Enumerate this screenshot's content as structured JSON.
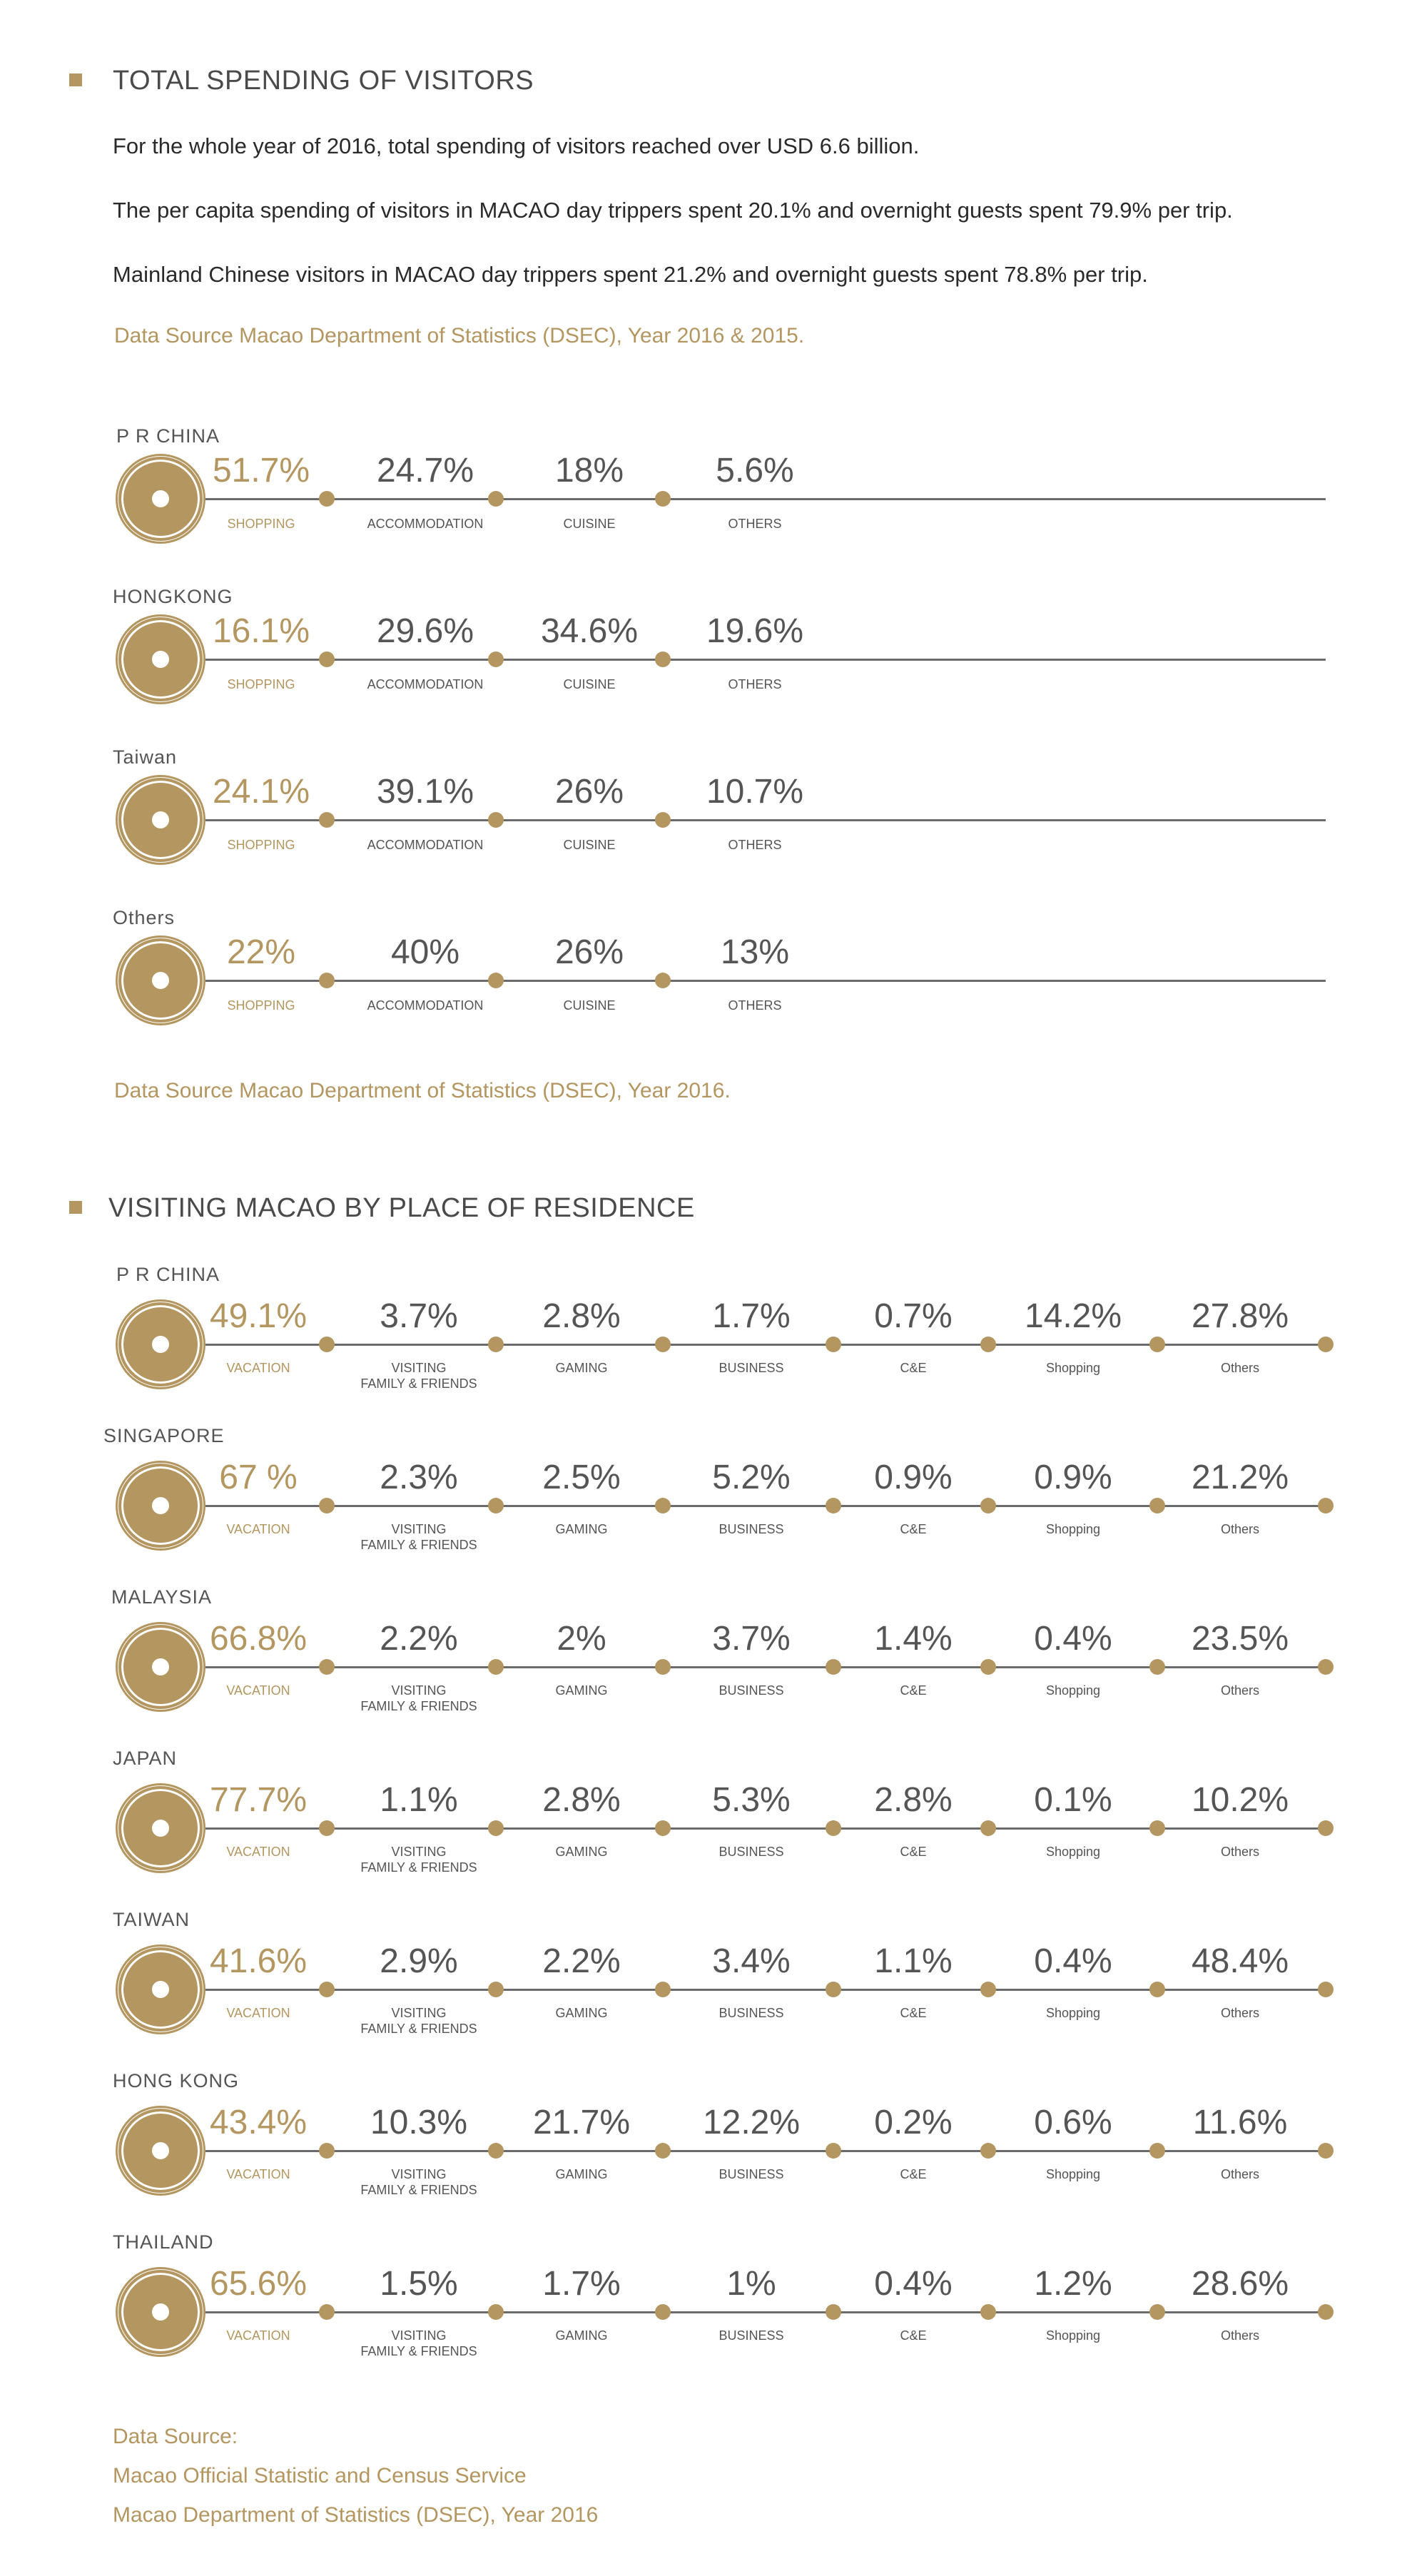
{
  "colors": {
    "accent": "#b39660",
    "text": "#3d3d3d",
    "line": "#6b6b6b"
  },
  "spending": {
    "heading": "TOTAL SPENDING OF VISITORS",
    "paragraphs": [
      "For the whole year of 2016, total spending of visitors reached over USD 6.6 billion.",
      "The per capita spending of visitors in MACAO day trippers spent 20.1% and overnight guests spent 79.9% per trip.",
      "Mainland Chinese visitors in MACAO day trippers spent 21.2% and overnight guests spent 78.8% per trip."
    ],
    "source_top": "Data Source Macao Department of Statistics (DSEC), Year 2016 & 2015.",
    "source_bottom": "Data Source Macao Department of Statistics (DSEC), Year 2016."
  },
  "residence": {
    "heading": "VISITING MACAO BY PLACE OF RESIDENCE",
    "source_lines": [
      "Data Source:",
      "Macao Official Statistic and Census Service",
      "Macao Department of Statistics (DSEC), Year 2016"
    ]
  },
  "chart_data": [
    {
      "type": "table",
      "title": "TOTAL SPENDING OF VISITORS",
      "categories": [
        "SHOPPING",
        "ACCOMMODATION",
        "CUISINE",
        "OTHERS"
      ],
      "rows": [
        {
          "name": "P R CHINA",
          "labels": [
            "51.7%",
            "24.7%",
            "18%",
            "5.6%"
          ],
          "values": [
            51.7,
            24.7,
            18,
            5.6
          ]
        },
        {
          "name": "HONGKONG",
          "labels": [
            "16.1%",
            "29.6%",
            "34.6%",
            "19.6%"
          ],
          "values": [
            16.1,
            29.6,
            34.6,
            19.6
          ]
        },
        {
          "name": "Taiwan",
          "labels": [
            "24.1%",
            "39.1%",
            "26%",
            "10.7%"
          ],
          "values": [
            24.1,
            39.1,
            26,
            10.7
          ]
        },
        {
          "name": "Others",
          "labels": [
            "22%",
            "40%",
            "26%",
            "13%"
          ],
          "values": [
            22,
            40,
            26,
            13
          ]
        }
      ]
    },
    {
      "type": "table",
      "title": "VISITING MACAO BY PLACE OF RESIDENCE",
      "categories": [
        "VACATION",
        "VISITING\nFAMILY & FRIENDS",
        "GAMING",
        "BUSINESS",
        "C&E",
        "Shopping",
        "Others"
      ],
      "rows": [
        {
          "name": "P R CHINA",
          "labels": [
            "49.1%",
            "3.7%",
            "2.8%",
            "1.7%",
            "0.7%",
            "14.2%",
            "27.8%"
          ],
          "values": [
            49.1,
            3.7,
            2.8,
            1.7,
            0.7,
            14.2,
            27.8
          ]
        },
        {
          "name": "SINGAPORE",
          "labels": [
            "67 %",
            "2.3%",
            "2.5%",
            "5.2%",
            "0.9%",
            "0.9%",
            "21.2%"
          ],
          "values": [
            67,
            2.3,
            2.5,
            5.2,
            0.9,
            0.9,
            21.2
          ]
        },
        {
          "name": "MALAYSIA",
          "labels": [
            "66.8%",
            "2.2%",
            "2%",
            "3.7%",
            "1.4%",
            "0.4%",
            "23.5%"
          ],
          "values": [
            66.8,
            2.2,
            2,
            3.7,
            1.4,
            0.4,
            23.5
          ]
        },
        {
          "name": "JAPAN",
          "labels": [
            "77.7%",
            "1.1%",
            "2.8%",
            "5.3%",
            "2.8%",
            "0.1%",
            "10.2%"
          ],
          "values": [
            77.7,
            1.1,
            2.8,
            5.3,
            2.8,
            0.1,
            10.2
          ]
        },
        {
          "name": "TAIWAN",
          "labels": [
            "41.6%",
            "2.9%",
            "2.2%",
            "3.4%",
            "1.1%",
            "0.4%",
            "48.4%"
          ],
          "values": [
            41.6,
            2.9,
            2.2,
            3.4,
            1.1,
            0.4,
            48.4
          ]
        },
        {
          "name": "HONG KONG",
          "labels": [
            "43.4%",
            "10.3%",
            "21.7%",
            "12.2%",
            "0.2%",
            "0.6%",
            "11.6%"
          ],
          "values": [
            43.4,
            10.3,
            21.7,
            12.2,
            0.2,
            0.6,
            11.6
          ]
        },
        {
          "name": "THAILAND",
          "labels": [
            "65.6%",
            "1.5%",
            "1.7%",
            "1%",
            "0.4%",
            "1.2%",
            "28.6%"
          ],
          "values": [
            65.6,
            1.5,
            1.7,
            1,
            0.4,
            1.2,
            28.6
          ]
        }
      ]
    }
  ]
}
